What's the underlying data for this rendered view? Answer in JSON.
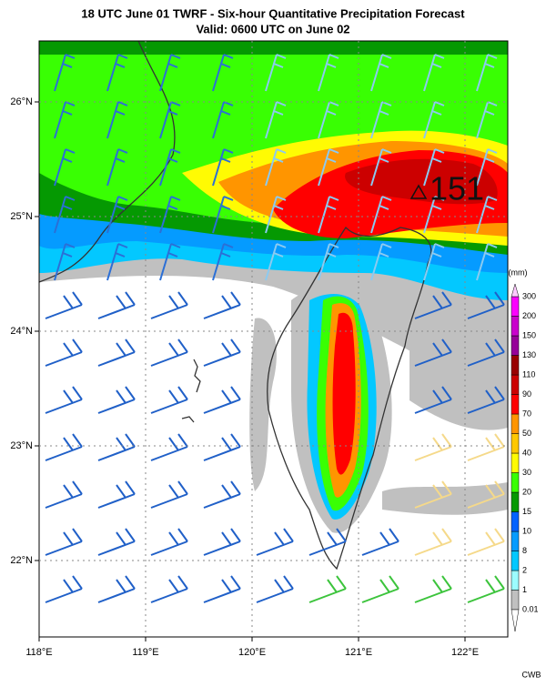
{
  "title": "18 UTC June 01 TWRF - Six-hour Quantitative Precipitation Forecast",
  "subtitle": "Valid: 0600 UTC on June 02",
  "map": {
    "lon_ticks": [
      "118°E",
      "119°E",
      "120°E",
      "121°E",
      "122°E"
    ],
    "lat_ticks": [
      "26°N",
      "25°N",
      "24°N",
      "23°N",
      "22°N"
    ],
    "max_label": "151"
  },
  "colorbar": {
    "unit": "(mm)",
    "levels": [
      "0.01",
      "1",
      "2",
      "8",
      "10",
      "15",
      "20",
      "30",
      "40",
      "50",
      "70",
      "90",
      "110",
      "130",
      "150",
      "200",
      "300"
    ],
    "colors": [
      "#c0c0c0",
      "#9cfcff",
      "#03c8ff",
      "#059bff",
      "#0363ff",
      "#059902",
      "#39ff03",
      "#fffb03",
      "#ffc800",
      "#ff9500",
      "#ff0000",
      "#cc0000",
      "#990000",
      "#960099",
      "#c900cc",
      "#fb00ff"
    ],
    "top_color": "#fdc9fe",
    "bottom_color": "#ffffff"
  },
  "credit": "CWB"
}
